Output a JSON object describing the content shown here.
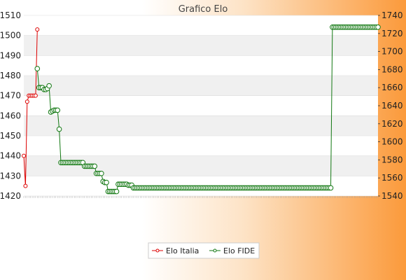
{
  "chart_data": {
    "type": "line",
    "title": "Grafico Elo",
    "y_left": {
      "min": 1420,
      "max": 1510,
      "step": 10
    },
    "y_right": {
      "min": 1540,
      "max": 1740,
      "step": 20
    },
    "grid": true,
    "legend_position": "bottom",
    "series": [
      {
        "name": "Elo Italia",
        "axis": "left",
        "color": "#dd0000",
        "values": [
          1440,
          1425,
          1467,
          1470,
          1470,
          1470,
          1470,
          1470,
          1503
        ]
      },
      {
        "name": "Elo FIDE",
        "axis": "right",
        "color": "#117711",
        "start_index": 8,
        "segments": [
          [
            1,
            1681
          ],
          [
            3,
            1660
          ],
          [
            2,
            1658
          ],
          [
            1,
            1659
          ],
          [
            1,
            1662
          ],
          [
            1,
            1633
          ],
          [
            1,
            1634
          ],
          [
            1,
            1635
          ],
          [
            2,
            1635
          ],
          [
            1,
            1614
          ],
          [
            14,
            1577
          ],
          [
            7,
            1573
          ],
          [
            4,
            1565
          ],
          [
            1,
            1556
          ],
          [
            2,
            1555
          ],
          [
            6,
            1545
          ],
          [
            6,
            1553
          ],
          [
            3,
            1552
          ],
          [
            4,
            1549
          ],
          [
            114,
            1549
          ],
          [
            1,
            1727
          ],
          [
            27,
            1727
          ]
        ]
      }
    ]
  }
}
